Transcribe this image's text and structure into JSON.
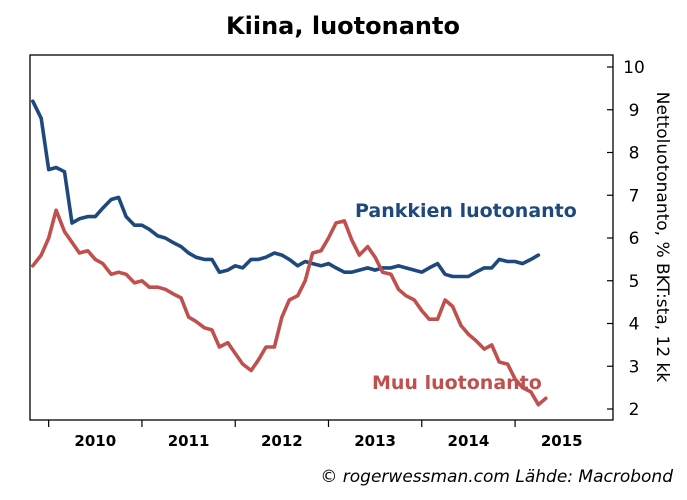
{
  "chart_data": {
    "type": "line",
    "title": "Kiina, luotonanto",
    "ylabel": "Nettoluotonanto, % BKT:sta, 12 kk",
    "ylim": [
      2,
      10
    ],
    "yticks": [
      2,
      3,
      4,
      5,
      6,
      7,
      8,
      9,
      10
    ],
    "y_axis_side": "right",
    "x_range": [
      2009.3,
      2015.55
    ],
    "x_year_ticks": [
      2009.5,
      2010.5,
      2011.5,
      2012.5,
      2013.5,
      2014.5
    ],
    "x_tick_labels": [
      {
        "label": "2010",
        "x": 2010.0
      },
      {
        "label": "2011",
        "x": 2011.0
      },
      {
        "label": "2012",
        "x": 2012.0
      },
      {
        "label": "2013",
        "x": 2013.0
      },
      {
        "label": "2014",
        "x": 2014.0
      },
      {
        "label": "2015",
        "x": 2015.0
      }
    ],
    "grid": false,
    "legend": "none",
    "series": [
      {
        "name": "Pankkien luotonanto",
        "color": "#1F497D",
        "points": [
          [
            2009.33,
            9.2
          ],
          [
            2009.42,
            8.8
          ],
          [
            2009.5,
            7.6
          ],
          [
            2009.58,
            7.65
          ],
          [
            2009.67,
            7.55
          ],
          [
            2009.75,
            6.35
          ],
          [
            2009.83,
            6.45
          ],
          [
            2009.92,
            6.5
          ],
          [
            2010.0,
            6.5
          ],
          [
            2010.08,
            6.7
          ],
          [
            2010.17,
            6.9
          ],
          [
            2010.25,
            6.95
          ],
          [
            2010.33,
            6.5
          ],
          [
            2010.42,
            6.3
          ],
          [
            2010.5,
            6.3
          ],
          [
            2010.58,
            6.2
          ],
          [
            2010.67,
            6.05
          ],
          [
            2010.75,
            6.0
          ],
          [
            2010.83,
            5.9
          ],
          [
            2010.92,
            5.8
          ],
          [
            2011.0,
            5.65
          ],
          [
            2011.08,
            5.55
          ],
          [
            2011.17,
            5.5
          ],
          [
            2011.25,
            5.5
          ],
          [
            2011.33,
            5.2
          ],
          [
            2011.42,
            5.25
          ],
          [
            2011.5,
            5.35
          ],
          [
            2011.58,
            5.3
          ],
          [
            2011.67,
            5.5
          ],
          [
            2011.75,
            5.5
          ],
          [
            2011.83,
            5.55
          ],
          [
            2011.92,
            5.65
          ],
          [
            2012.0,
            5.6
          ],
          [
            2012.08,
            5.5
          ],
          [
            2012.17,
            5.35
          ],
          [
            2012.25,
            5.45
          ],
          [
            2012.33,
            5.4
          ],
          [
            2012.42,
            5.35
          ],
          [
            2012.5,
            5.4
          ],
          [
            2012.58,
            5.3
          ],
          [
            2012.67,
            5.2
          ],
          [
            2012.75,
            5.2
          ],
          [
            2012.83,
            5.25
          ],
          [
            2012.92,
            5.3
          ],
          [
            2013.0,
            5.25
          ],
          [
            2013.08,
            5.3
          ],
          [
            2013.17,
            5.3
          ],
          [
            2013.25,
            5.35
          ],
          [
            2013.33,
            5.3
          ],
          [
            2013.42,
            5.25
          ],
          [
            2013.5,
            5.2
          ],
          [
            2013.58,
            5.3
          ],
          [
            2013.67,
            5.4
          ],
          [
            2013.75,
            5.15
          ],
          [
            2013.83,
            5.1
          ],
          [
            2013.92,
            5.1
          ],
          [
            2014.0,
            5.1
          ],
          [
            2014.08,
            5.2
          ],
          [
            2014.17,
            5.3
          ],
          [
            2014.25,
            5.3
          ],
          [
            2014.33,
            5.5
          ],
          [
            2014.42,
            5.45
          ],
          [
            2014.5,
            5.45
          ],
          [
            2014.58,
            5.4
          ],
          [
            2014.67,
            5.5
          ],
          [
            2014.75,
            5.6
          ]
        ]
      },
      {
        "name": "Muu luotonanto",
        "color": "#C0504D",
        "points": [
          [
            2009.33,
            5.35
          ],
          [
            2009.42,
            5.6
          ],
          [
            2009.5,
            6.0
          ],
          [
            2009.58,
            6.65
          ],
          [
            2009.67,
            6.15
          ],
          [
            2009.75,
            5.9
          ],
          [
            2009.83,
            5.65
          ],
          [
            2009.92,
            5.7
          ],
          [
            2010.0,
            5.5
          ],
          [
            2010.08,
            5.4
          ],
          [
            2010.17,
            5.15
          ],
          [
            2010.25,
            5.2
          ],
          [
            2010.33,
            5.15
          ],
          [
            2010.42,
            4.95
          ],
          [
            2010.5,
            5.0
          ],
          [
            2010.58,
            4.85
          ],
          [
            2010.67,
            4.85
          ],
          [
            2010.75,
            4.8
          ],
          [
            2010.83,
            4.7
          ],
          [
            2010.92,
            4.6
          ],
          [
            2011.0,
            4.15
          ],
          [
            2011.08,
            4.05
          ],
          [
            2011.17,
            3.9
          ],
          [
            2011.25,
            3.85
          ],
          [
            2011.33,
            3.45
          ],
          [
            2011.42,
            3.55
          ],
          [
            2011.5,
            3.3
          ],
          [
            2011.58,
            3.05
          ],
          [
            2011.67,
            2.9
          ],
          [
            2011.75,
            3.15
          ],
          [
            2011.83,
            3.45
          ],
          [
            2011.92,
            3.45
          ],
          [
            2012.0,
            4.15
          ],
          [
            2012.08,
            4.55
          ],
          [
            2012.17,
            4.65
          ],
          [
            2012.25,
            5.0
          ],
          [
            2012.33,
            5.65
          ],
          [
            2012.42,
            5.7
          ],
          [
            2012.5,
            6.0
          ],
          [
            2012.58,
            6.35
          ],
          [
            2012.67,
            6.4
          ],
          [
            2012.75,
            5.95
          ],
          [
            2012.83,
            5.6
          ],
          [
            2012.92,
            5.8
          ],
          [
            2013.0,
            5.55
          ],
          [
            2013.08,
            5.2
          ],
          [
            2013.17,
            5.15
          ],
          [
            2013.25,
            4.8
          ],
          [
            2013.33,
            4.65
          ],
          [
            2013.42,
            4.55
          ],
          [
            2013.5,
            4.3
          ],
          [
            2013.58,
            4.1
          ],
          [
            2013.67,
            4.1
          ],
          [
            2013.75,
            4.55
          ],
          [
            2013.83,
            4.4
          ],
          [
            2013.92,
            3.95
          ],
          [
            2014.0,
            3.75
          ],
          [
            2014.08,
            3.6
          ],
          [
            2014.17,
            3.4
          ],
          [
            2014.25,
            3.5
          ],
          [
            2014.33,
            3.1
          ],
          [
            2014.42,
            3.05
          ],
          [
            2014.5,
            2.7
          ],
          [
            2014.58,
            2.5
          ],
          [
            2014.67,
            2.4
          ],
          [
            2014.75,
            2.1
          ],
          [
            2014.83,
            2.25
          ]
        ]
      }
    ],
    "annotations": [
      {
        "text": "Pankkien luotonanto",
        "series": "Pankkien luotonanto"
      },
      {
        "text": "Muu luotonanto",
        "series": "Muu luotonanto"
      }
    ],
    "source": "© rogerwessman.com Lähde: Macrobond"
  }
}
